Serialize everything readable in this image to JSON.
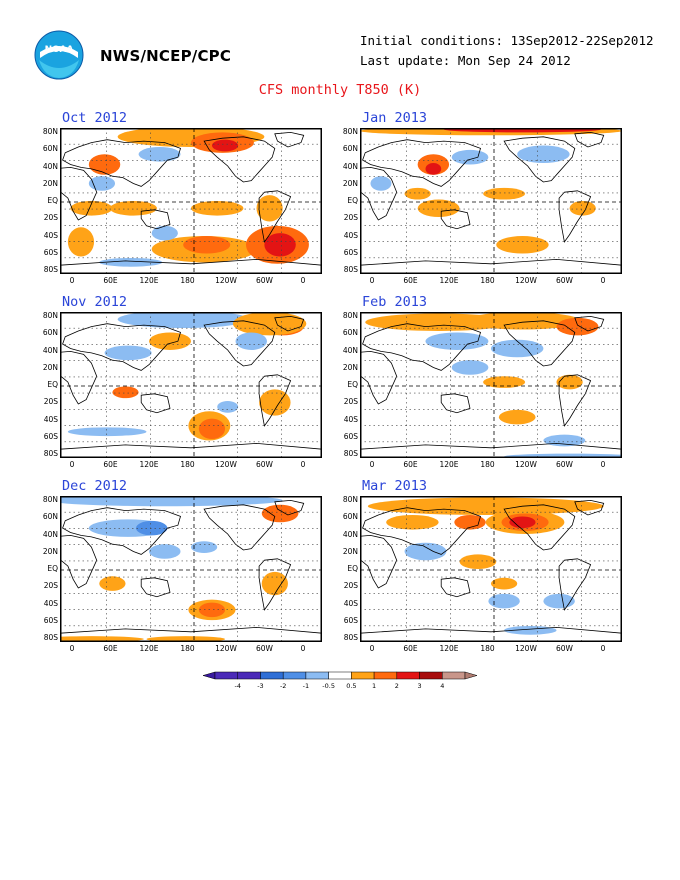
{
  "header": {
    "agency": "NWS/NCEP/CPC",
    "initial_conditions": "Initial conditions: 13Sep2012-22Sep2012",
    "last_update": "Last update: Mon Sep 24 2012",
    "logo_icon": "noaa-logo-icon"
  },
  "title": "CFS monthly T850 (K)",
  "axes": {
    "lat_labels": [
      "80N",
      "60N",
      "40N",
      "20N",
      "EQ",
      "20S",
      "40S",
      "60S",
      "80S"
    ],
    "lon_labels": [
      "0",
      "60E",
      "120E",
      "180",
      "120W",
      "60W",
      "0"
    ]
  },
  "panels": [
    {
      "title": "Oct 2012"
    },
    {
      "title": "Jan 2013"
    },
    {
      "title": "Nov 2012"
    },
    {
      "title": "Feb 2013"
    },
    {
      "title": "Dec 2012"
    },
    {
      "title": "Mar 2013"
    }
  ],
  "colorbar": {
    "labels": [
      "-4",
      "-3",
      "-2",
      "-1",
      "-0.5",
      "0.5",
      "1",
      "2",
      "3",
      "4"
    ],
    "colors": [
      "#4b2ab8",
      "#2f6fd6",
      "#4f8fe6",
      "#8cbcf2",
      "#ffffff",
      "#ffa317",
      "#ff6a0e",
      "#e31414",
      "#a80d0d",
      "#c9968a"
    ],
    "end_low_color": "#3a1aa0",
    "end_high_color": "#b07c70"
  }
}
